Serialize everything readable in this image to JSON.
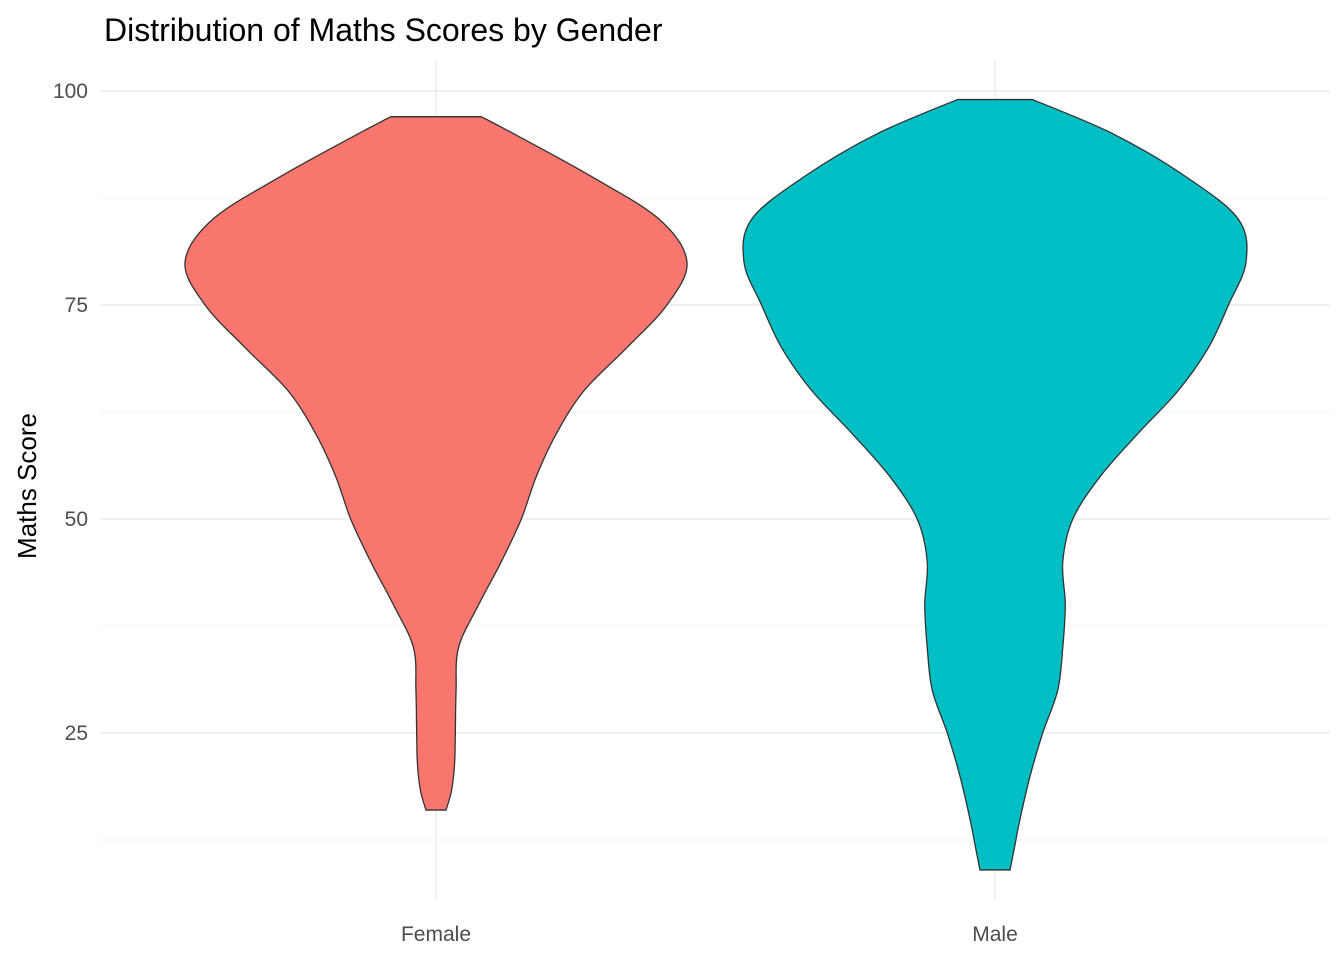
{
  "chart_data": {
    "type": "violin",
    "title": "Distribution of Maths Scores by Gender",
    "xlabel": "",
    "ylabel": "Maths Score",
    "categories": [
      "Female",
      "Male"
    ],
    "ylim": [
      6,
      103
    ],
    "y_ticks": [
      25,
      50,
      75,
      100
    ],
    "y_minor_ticks": [
      12.5,
      37.5,
      62.5,
      87.5
    ],
    "grid": true,
    "legend": "none",
    "series": [
      {
        "category": "Female",
        "color": "#F8766D",
        "min": 16,
        "max": 97,
        "density_profile": [
          [
            16,
            0.04
          ],
          [
            18,
            0.06
          ],
          [
            20,
            0.07
          ],
          [
            22,
            0.075
          ],
          [
            25,
            0.077
          ],
          [
            30,
            0.08
          ],
          [
            35,
            0.09
          ],
          [
            40,
            0.17
          ],
          [
            45,
            0.26
          ],
          [
            50,
            0.34
          ],
          [
            55,
            0.4
          ],
          [
            60,
            0.48
          ],
          [
            65,
            0.59
          ],
          [
            70,
            0.76
          ],
          [
            75,
            0.92
          ],
          [
            80,
            1.0
          ],
          [
            85,
            0.89
          ],
          [
            90,
            0.62
          ],
          [
            95,
            0.31
          ],
          [
            97,
            0.18
          ]
        ]
      },
      {
        "category": "Male",
        "color": "#00BFC4",
        "min": 9,
        "max": 99,
        "density_profile": [
          [
            9,
            0.06
          ],
          [
            12,
            0.08
          ],
          [
            15,
            0.1
          ],
          [
            20,
            0.14
          ],
          [
            25,
            0.19
          ],
          [
            30,
            0.25
          ],
          [
            35,
            0.27
          ],
          [
            40,
            0.28
          ],
          [
            45,
            0.27
          ],
          [
            50,
            0.31
          ],
          [
            55,
            0.42
          ],
          [
            60,
            0.57
          ],
          [
            65,
            0.73
          ],
          [
            70,
            0.85
          ],
          [
            75,
            0.93
          ],
          [
            80,
            1.0
          ],
          [
            85,
            0.97
          ],
          [
            90,
            0.76
          ],
          [
            95,
            0.47
          ],
          [
            99,
            0.15
          ]
        ]
      }
    ]
  }
}
